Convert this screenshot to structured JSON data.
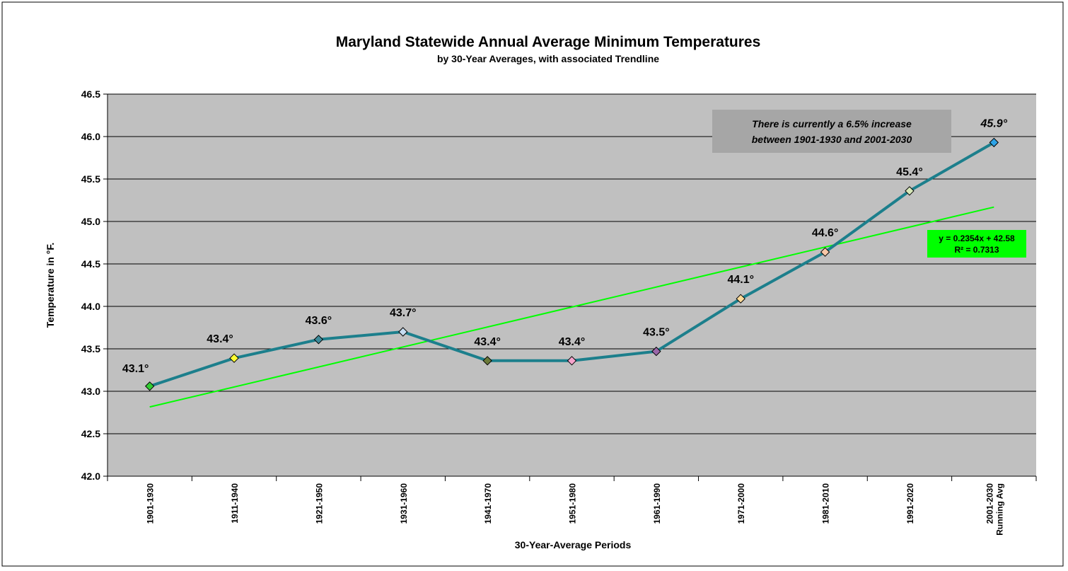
{
  "chart_data": {
    "type": "line",
    "title": "Maryland Statewide Annual Average Minimum Temperatures",
    "subtitle": "by 30-Year Averages, with associated Trendline",
    "x_label": "30-Year-Average Periods",
    "y_label": "Temperature in °F.",
    "categories": [
      "1901-1930",
      "1911-1940",
      "1921-1950",
      "1931-1960",
      "1941-1970",
      "1951-1980",
      "1961-1990",
      "1971-2000",
      "1981-2010",
      "1991-2020",
      [
        "2001-2030",
        "Running Avg"
      ]
    ],
    "series": [
      {
        "color": "#1c7f8c",
        "values": [
          43.06,
          43.39,
          43.61,
          43.7,
          43.36,
          43.36,
          43.47,
          44.09,
          44.64,
          45.36,
          45.93
        ],
        "value_labels": [
          "43.1°",
          "43.4°",
          "43.6°",
          "43.7°",
          "43.4°",
          "43.4°",
          "43.5°",
          "44.1°",
          "44.6°",
          "45.4°",
          "45.9°"
        ],
        "point_colors": [
          "#33cc33",
          "#ffff33",
          "#3d8a99",
          "#c6dcf0",
          "#6b7a3a",
          "#f5a3cc",
          "#9966a8",
          "#ffdb99",
          "#f7c8a8",
          "#d7e8b8",
          "#2ea3e6"
        ]
      }
    ],
    "trendline": {
      "slope": 0.2354,
      "intercept": 42.58,
      "color": "#00ff00",
      "equation": "y = 0.2354x + 42.58",
      "r_squared": "R² = 0.7313"
    },
    "annotation": [
      "There is currently a 6.5% increase",
      "between 1901-1930 and 2001-2030"
    ],
    "ylim": [
      42.0,
      46.5
    ],
    "yticks": [
      {
        "value": 42.0,
        "label": "42.0"
      },
      42.5,
      {
        "value": 43.0,
        "label": "43.0"
      },
      43.5,
      {
        "value": 44.0,
        "label": "44.0"
      },
      44.5,
      {
        "value": 45.0,
        "label": "45.0"
      },
      45.5,
      {
        "value": 46.0,
        "label": "46.0"
      },
      46.5
    ],
    "grid": true
  }
}
